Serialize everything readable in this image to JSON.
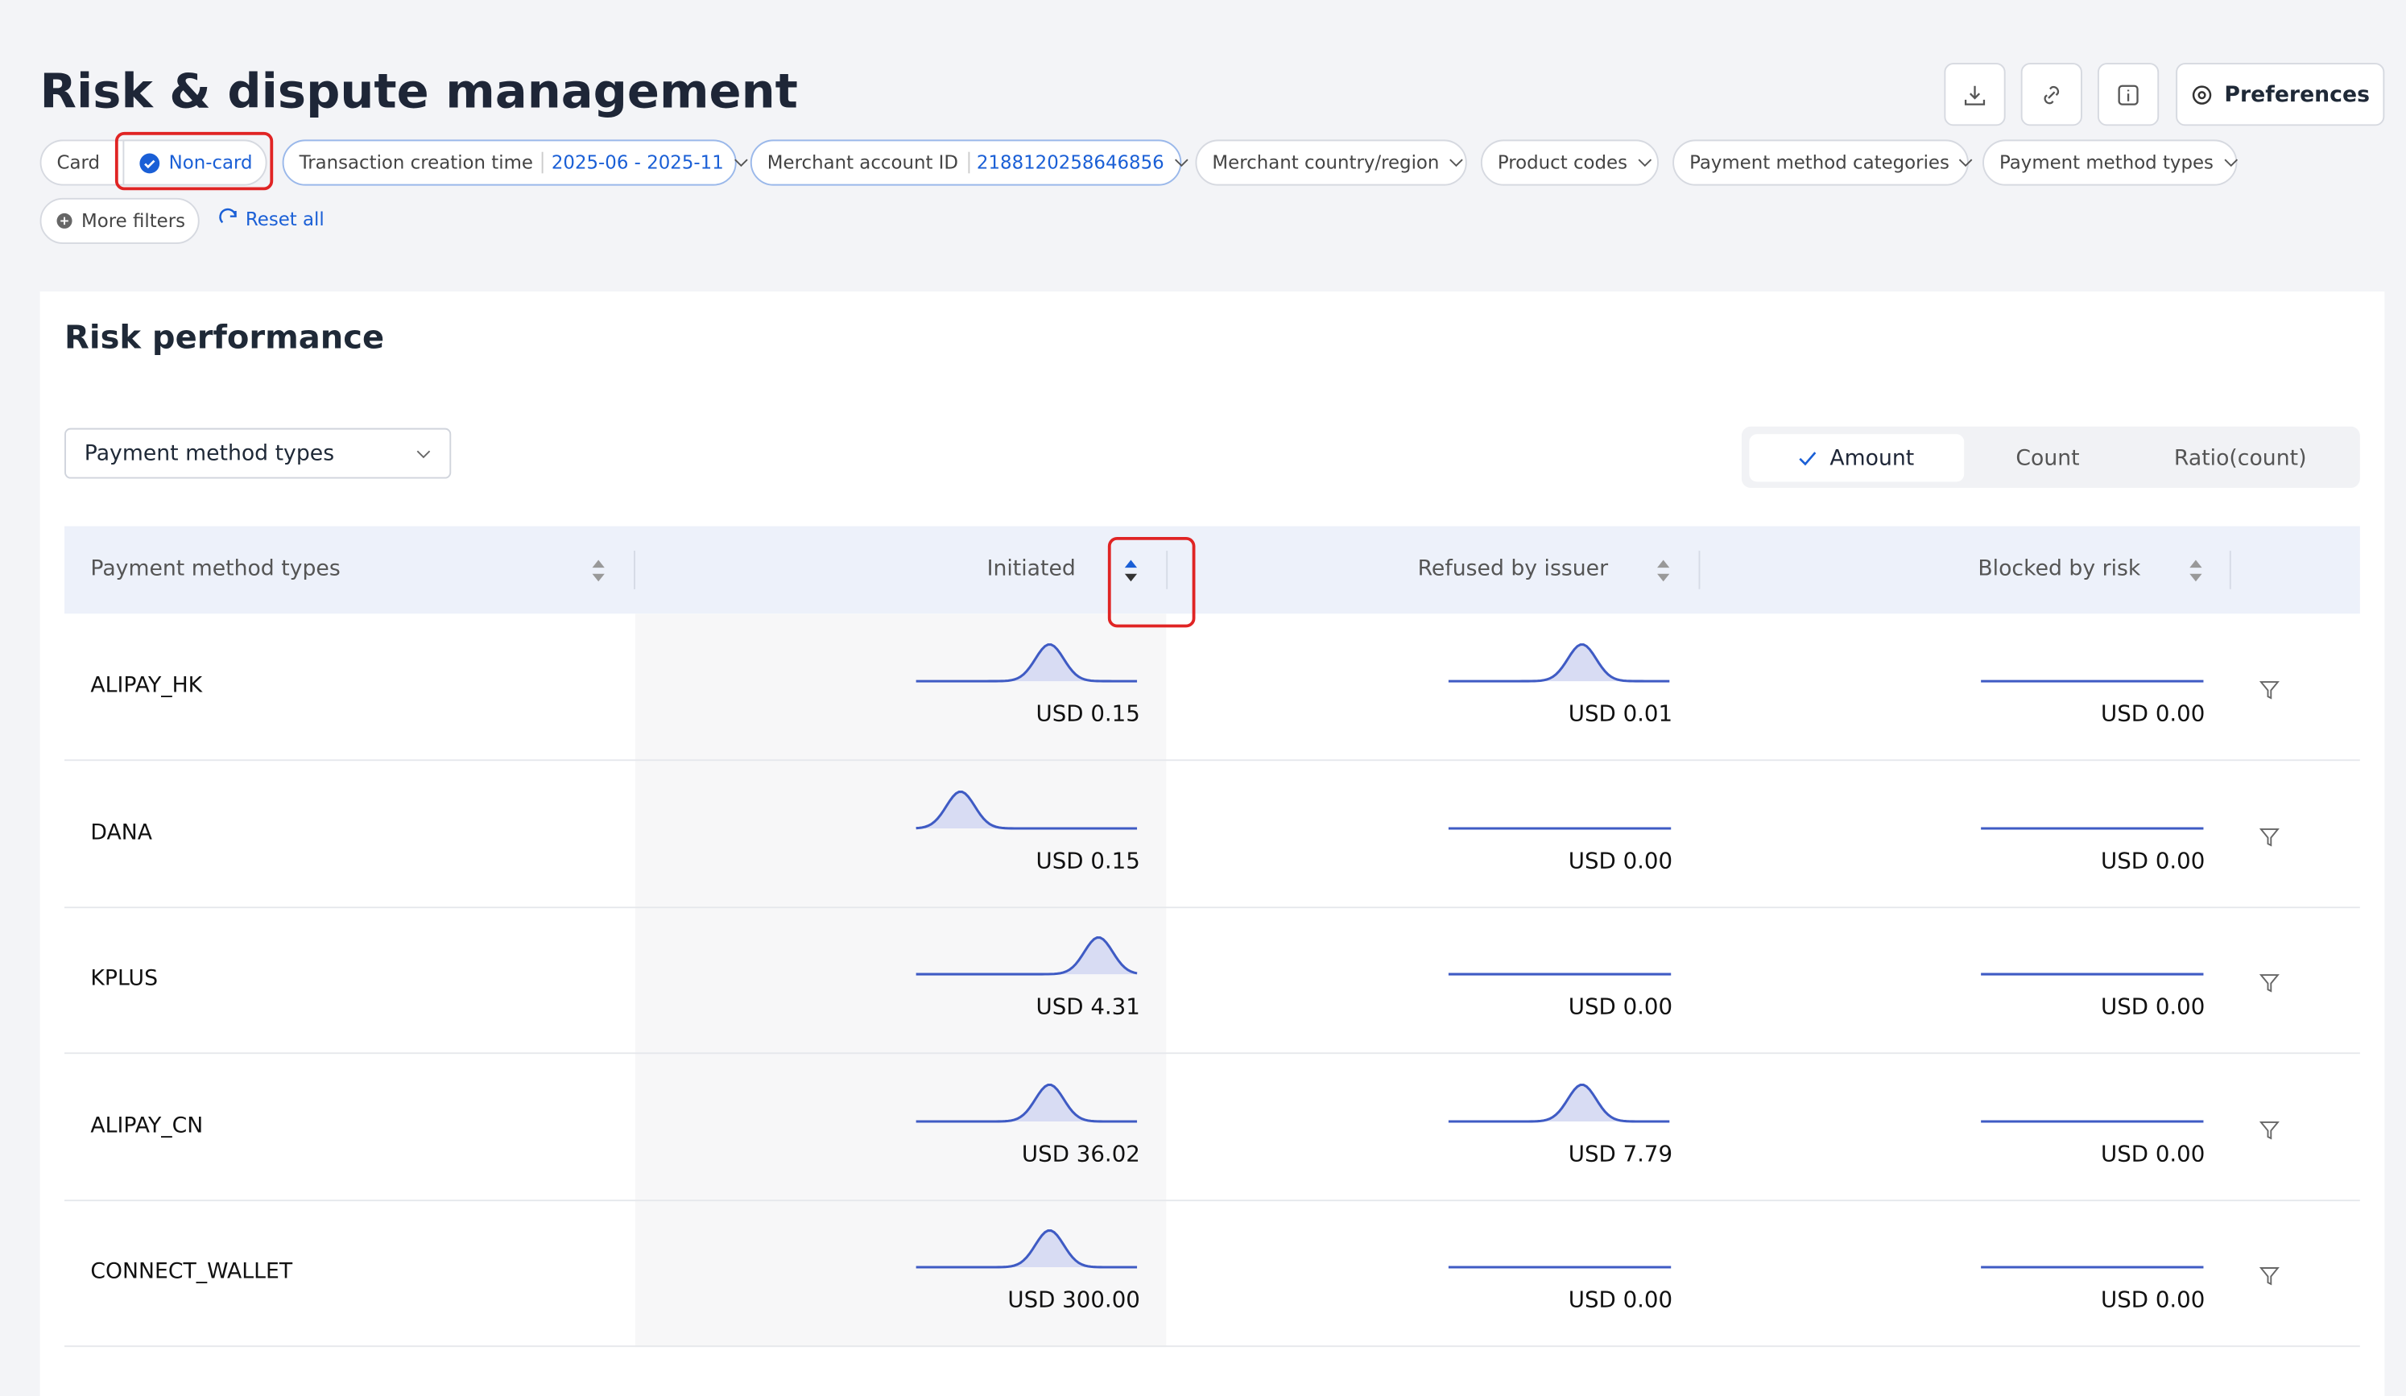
{
  "header": {
    "title": "Risk & dispute management",
    "preferences": "Preferences"
  },
  "filters": {
    "card": "Card",
    "non_card": "Non-card",
    "chips": [
      {
        "label": "Transaction creation time",
        "value": "2025-06 - 2025-11"
      },
      {
        "label": "Merchant account ID",
        "value": "2188120258646856"
      },
      {
        "label": "Merchant country/region"
      },
      {
        "label": "Product codes"
      },
      {
        "label": "Payment method categories"
      },
      {
        "label": "Payment method types"
      }
    ],
    "more": "More filters",
    "reset": "Reset all"
  },
  "section": {
    "title": "Risk performance",
    "dropdown": "Payment method types",
    "toggle": [
      "Amount",
      "Count",
      "Ratio(count)"
    ]
  },
  "table": {
    "columns": [
      "Payment method types",
      "Initiated",
      "Refused by issuer",
      "Blocked by risk"
    ],
    "rows": [
      [
        "ALIPAY_HK",
        "USD 0.15",
        "USD 0.01",
        "USD 0.00"
      ],
      [
        "DANA",
        "USD 0.15",
        "USD 0.00",
        "USD 0.00"
      ],
      [
        "KPLUS",
        "USD 4.31",
        "USD 0.00",
        "USD 0.00"
      ],
      [
        "ALIPAY_CN",
        "USD 36.02",
        "USD 7.79",
        "USD 0.00"
      ],
      [
        "CONNECT_WALLET",
        "USD 300.00",
        "USD 0.00",
        "USD 0.00"
      ]
    ]
  }
}
